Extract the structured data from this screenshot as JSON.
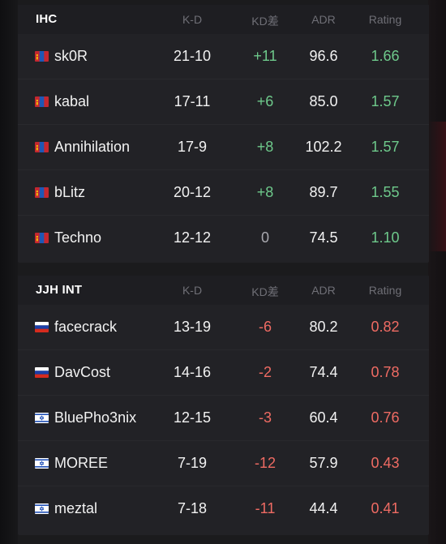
{
  "columns": {
    "kd": "K-D",
    "kd_diff": "KD差",
    "adr": "ADR",
    "rating": "Rating"
  },
  "colors": {
    "positive": "#6ec98b",
    "negative": "#ef6b63",
    "neutral": "#a8a8ae"
  },
  "teams": [
    {
      "name": "IHC",
      "players": [
        {
          "flag": "mongolia-flag-icon",
          "name": "sk0R",
          "kd": "21-10",
          "diff": "+11",
          "adr": "96.6",
          "rating": "1.66"
        },
        {
          "flag": "mongolia-flag-icon",
          "name": "kabal",
          "kd": "17-11",
          "diff": "+6",
          "adr": "85.0",
          "rating": "1.57"
        },
        {
          "flag": "mongolia-flag-icon",
          "name": "Annihilation",
          "kd": "17-9",
          "diff": "+8",
          "adr": "102.2",
          "rating": "1.57"
        },
        {
          "flag": "mongolia-flag-icon",
          "name": "bLitz",
          "kd": "20-12",
          "diff": "+8",
          "adr": "89.7",
          "rating": "1.55"
        },
        {
          "flag": "mongolia-flag-icon",
          "name": "Techno",
          "kd": "12-12",
          "diff": "0",
          "adr": "74.5",
          "rating": "1.10"
        }
      ]
    },
    {
      "name": "JJH INT",
      "players": [
        {
          "flag": "russia-flag-icon",
          "name": "facecrack",
          "kd": "13-19",
          "diff": "-6",
          "adr": "80.2",
          "rating": "0.82"
        },
        {
          "flag": "russia-flag-icon",
          "name": "DavCost",
          "kd": "14-16",
          "diff": "-2",
          "adr": "74.4",
          "rating": "0.78"
        },
        {
          "flag": "israel-flag-icon",
          "name": "BluePho3nix",
          "kd": "12-15",
          "diff": "-3",
          "adr": "60.4",
          "rating": "0.76"
        },
        {
          "flag": "israel-flag-icon",
          "name": "MOREE",
          "kd": "7-19",
          "diff": "-12",
          "adr": "57.9",
          "rating": "0.43"
        },
        {
          "flag": "israel-flag-icon",
          "name": "meztal",
          "kd": "7-18",
          "diff": "-11",
          "adr": "44.4",
          "rating": "0.41"
        }
      ]
    }
  ]
}
